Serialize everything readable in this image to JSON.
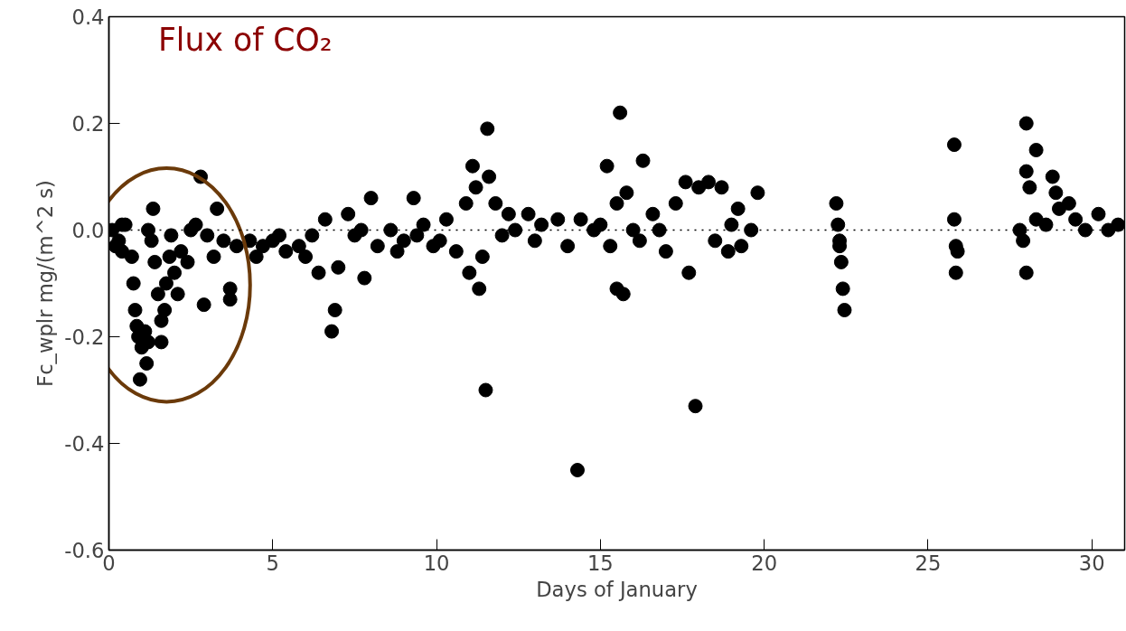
{
  "chart_data": {
    "type": "scatter",
    "title": "Flux of CO₂",
    "xlabel": "Days of January",
    "ylabel": "Fc_wplr mg/(m^2 s)",
    "xlim": [
      0,
      31
    ],
    "ylim": [
      -0.6,
      0.4
    ],
    "xticks": [
      0,
      5,
      10,
      15,
      20,
      25,
      30
    ],
    "yticks": [
      {
        "value": -0.6,
        "label": "-0.6"
      },
      {
        "value": -0.4,
        "label": "-0.4"
      },
      {
        "value": -0.2,
        "label": "-0.2"
      },
      {
        "value": 0,
        "label": "0.0"
      },
      {
        "value": 0.2,
        "label": "0.2"
      },
      {
        "value": 0.4,
        "label": "0.4"
      }
    ],
    "grid": false,
    "marker": "circle",
    "ref_lines": [
      {
        "axis": "y",
        "value": 0,
        "line_style": "dotted",
        "color": "#000000"
      }
    ],
    "series": [
      {
        "color": "#000000",
        "x": [
          0.1,
          0.2,
          0.3,
          0.4,
          0.5,
          0.4,
          0.7,
          0.75,
          0.8,
          0.85,
          0.9,
          1.0,
          0.95,
          1.15,
          1.1,
          1.2,
          1.2,
          1.35,
          1.3,
          1.4,
          1.5,
          1.6,
          1.6,
          1.7,
          1.75,
          1.85,
          1.9,
          2.0,
          2.1,
          2.2,
          2.4,
          2.5,
          2.65,
          2.8,
          2.9,
          3.0,
          3.2,
          3.3,
          3.5,
          3.7,
          3.7,
          3.9,
          4.3,
          4.5,
          4.7,
          5.0,
          5.2,
          5.4,
          5.8,
          6.0,
          6.2,
          6.4,
          6.6,
          6.8,
          6.9,
          7.0,
          7.3,
          7.5,
          7.7,
          7.8,
          8.0,
          8.2,
          8.6,
          8.8,
          9.0,
          9.3,
          9.4,
          9.6,
          9.9,
          10.1,
          10.3,
          10.6,
          10.9,
          11.0,
          11.1,
          11.2,
          11.3,
          11.4,
          11.5,
          11.55,
          11.6,
          11.8,
          12.0,
          12.2,
          12.4,
          12.8,
          13.0,
          13.2,
          13.7,
          14.0,
          14.3,
          14.4,
          14.8,
          15.0,
          15.2,
          15.3,
          15.5,
          15.6,
          15.5,
          15.7,
          15.8,
          16.0,
          16.2,
          16.3,
          16.6,
          16.8,
          17.0,
          17.3,
          17.6,
          17.7,
          17.9,
          18.0,
          18.3,
          18.5,
          18.7,
          18.9,
          19.0,
          19.2,
          19.3,
          19.6,
          19.8,
          22.2,
          22.25,
          22.3,
          22.35,
          22.4,
          22.45,
          22.3,
          25.8,
          25.8,
          25.85,
          25.9,
          25.85,
          27.8,
          27.9,
          28.0,
          28.0,
          28.1,
          28.0,
          28.3,
          28.3,
          28.6,
          28.8,
          28.9,
          29.0,
          29.3,
          29.5,
          29.8,
          30.2,
          30.5,
          30.8
        ],
        "values": [
          0.0,
          -0.03,
          -0.02,
          -0.04,
          0.01,
          0.01,
          -0.05,
          -0.1,
          -0.15,
          -0.18,
          -0.2,
          -0.22,
          -0.28,
          -0.25,
          -0.19,
          -0.21,
          0.0,
          0.04,
          -0.02,
          -0.06,
          -0.12,
          -0.17,
          -0.21,
          -0.15,
          -0.1,
          -0.05,
          -0.01,
          -0.08,
          -0.12,
          -0.04,
          -0.06,
          0.0,
          0.01,
          0.1,
          -0.14,
          -0.01,
          -0.05,
          0.04,
          -0.02,
          -0.11,
          -0.13,
          -0.03,
          -0.02,
          -0.05,
          -0.03,
          -0.02,
          -0.01,
          -0.04,
          -0.03,
          -0.05,
          -0.01,
          -0.08,
          0.02,
          -0.19,
          -0.15,
          -0.07,
          0.03,
          -0.01,
          0.0,
          -0.09,
          0.06,
          -0.03,
          0.0,
          -0.04,
          -0.02,
          0.06,
          -0.01,
          0.01,
          -0.03,
          -0.02,
          0.02,
          -0.04,
          0.05,
          -0.08,
          0.12,
          0.08,
          -0.11,
          -0.05,
          -0.3,
          0.19,
          0.1,
          0.05,
          -0.01,
          0.03,
          0.0,
          0.03,
          -0.02,
          0.01,
          0.02,
          -0.03,
          -0.45,
          0.02,
          0.0,
          0.01,
          0.12,
          -0.03,
          0.05,
          0.22,
          -0.11,
          -0.12,
          0.07,
          0.0,
          -0.02,
          0.13,
          0.03,
          0.0,
          -0.04,
          0.05,
          0.09,
          -0.08,
          -0.33,
          0.08,
          0.09,
          -0.02,
          0.08,
          -0.04,
          0.01,
          0.04,
          -0.03,
          0.0,
          0.07,
          0.05,
          0.01,
          -0.03,
          -0.06,
          -0.11,
          -0.15,
          -0.02,
          0.16,
          0.02,
          -0.03,
          -0.04,
          -0.08,
          0.0,
          -0.02,
          0.2,
          0.11,
          0.08,
          -0.08,
          0.15,
          0.02,
          0.01,
          0.1,
          0.07,
          0.04,
          0.05,
          0.02,
          0.0,
          0.03,
          0.0,
          0.01
        ]
      }
    ]
  }
}
